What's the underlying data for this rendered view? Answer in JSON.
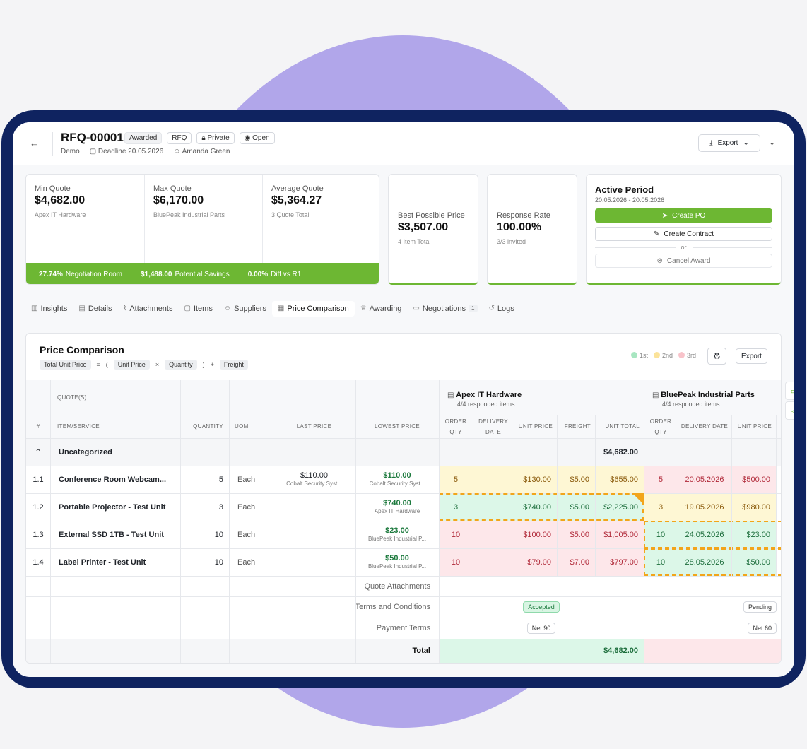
{
  "header": {
    "rfq_id": "RFQ-00001",
    "badges": [
      "Awarded",
      "RFQ",
      "Private",
      "Open"
    ],
    "org": "Demo",
    "deadline": "Deadline 20.05.2026",
    "owner": "Amanda Green",
    "export_label": "Export"
  },
  "quote_stats": {
    "min": {
      "label": "Min Quote",
      "value": "$4,682.00",
      "sub": "Apex IT Hardware"
    },
    "max": {
      "label": "Max Quote",
      "value": "$6,170.00",
      "sub": "BluePeak Industrial Parts"
    },
    "avg": {
      "label": "Average Quote",
      "value": "$5,364.27",
      "sub": "3 Quote Total"
    },
    "bar": {
      "negotiation_value": "27.74%",
      "negotiation_label": "Negotiation Room",
      "savings_value": "$1,488.00",
      "savings_label": "Potential Savings",
      "diff_value": "0.00%",
      "diff_label": "Diff vs R1"
    }
  },
  "best_price": {
    "label": "Best Possible Price",
    "value": "$3,507.00",
    "sub": "4 Item Total"
  },
  "response_rate": {
    "label": "Response Rate",
    "value": "100.00%",
    "sub": "3/3 invited"
  },
  "active_period": {
    "title": "Active Period",
    "dates": "20.05.2026 - 20.05.2026",
    "create_po": "Create PO",
    "create_contract": "Create Contract",
    "or": "or",
    "cancel_award": "Cancel Award"
  },
  "tabs": [
    {
      "label": "Insights",
      "icon": "bar-chart-icon"
    },
    {
      "label": "Details",
      "icon": "document-icon"
    },
    {
      "label": "Attachments",
      "icon": "paperclip-icon"
    },
    {
      "label": "Items",
      "icon": "clipboard-icon"
    },
    {
      "label": "Suppliers",
      "icon": "users-icon"
    },
    {
      "label": "Price Comparison",
      "icon": "table-icon",
      "active": true
    },
    {
      "label": "Awarding",
      "icon": "trophy-icon"
    },
    {
      "label": "Negotiations",
      "icon": "chat-icon",
      "count": "1"
    },
    {
      "label": "Logs",
      "icon": "history-icon"
    }
  ],
  "price_comparison": {
    "title": "Price Comparison",
    "formula": {
      "total": "Total Unit Price",
      "eq": "=",
      "open": "(",
      "unit_price": "Unit Price",
      "times": "×",
      "quantity": "Quantity",
      "close": ")",
      "plus": "+",
      "freight": "Freight"
    },
    "legend": {
      "first": "1st",
      "second": "2nd",
      "third": "3rd",
      "first_color": "#a8e6c1",
      "second_color": "#fbe39a",
      "third_color": "#f8c3ca"
    },
    "export_label": "Export"
  },
  "table": {
    "quotes_header": "QUOTE(S)",
    "columns": {
      "index": "#",
      "item": "ITEM/SERVICE",
      "quantity": "QUANTITY",
      "uom": "UOM",
      "last_price": "LAST PRICE",
      "lowest_price": "LOWEST PRICE"
    },
    "supplier_columns": {
      "order_qty": "ORDER QTY",
      "delivery_date": "DELIVERY DATE",
      "unit_price": "UNIT PRICE",
      "freight": "FREIGHT",
      "unit_total": "UNIT TOTAL"
    },
    "suppliers": [
      {
        "name": "Apex IT Hardware",
        "sub": "4/4 responded items"
      },
      {
        "name": "BluePeak Industrial Parts",
        "sub": "4/4 responded items"
      }
    ],
    "group": {
      "label": "Uncategorized",
      "apex_total": "$4,682.00"
    },
    "rows": [
      {
        "idx": "1.1",
        "item": "Conference Room Webcam...",
        "qty": "5",
        "uom": "Each",
        "last_price": "$110.00",
        "last_supplier": "Cobalt Security Syst...",
        "lowest_price": "$110.00",
        "lowest_supplier": "Cobalt Security Syst...",
        "apex": {
          "order_qty": "5",
          "delivery": "",
          "unit_price": "$130.00",
          "freight": "$5.00",
          "unit_total": "$655.00",
          "rank": "y"
        },
        "blue": {
          "order_qty": "5",
          "delivery": "20.05.2026",
          "unit_price": "$500.00",
          "rank": "r"
        }
      },
      {
        "idx": "1.2",
        "item": "Portable Projector - Test Unit",
        "qty": "3",
        "uom": "Each",
        "last_price": "",
        "last_supplier": "",
        "lowest_price": "$740.00",
        "lowest_supplier": "Apex IT Hardware",
        "apex": {
          "order_qty": "3",
          "delivery": "",
          "unit_price": "$740.00",
          "freight": "$5.00",
          "unit_total": "$2,225.00",
          "rank": "g"
        },
        "blue": {
          "order_qty": "3",
          "delivery": "19.05.2026",
          "unit_price": "$980.00",
          "rank": "y"
        }
      },
      {
        "idx": "1.3",
        "item": "External SSD 1TB - Test Unit",
        "qty": "10",
        "uom": "Each",
        "last_price": "",
        "last_supplier": "",
        "lowest_price": "$23.00",
        "lowest_supplier": "BluePeak Industrial P...",
        "apex": {
          "order_qty": "10",
          "delivery": "",
          "unit_price": "$100.00",
          "freight": "$5.00",
          "unit_total": "$1,005.00",
          "rank": "r"
        },
        "blue": {
          "order_qty": "10",
          "delivery": "24.05.2026",
          "unit_price": "$23.00",
          "rank": "g"
        }
      },
      {
        "idx": "1.4",
        "item": "Label Printer - Test Unit",
        "qty": "10",
        "uom": "Each",
        "last_price": "",
        "last_supplier": "",
        "lowest_price": "$50.00",
        "lowest_supplier": "BluePeak Industrial P...",
        "apex": {
          "order_qty": "10",
          "delivery": "",
          "unit_price": "$79.00",
          "freight": "$7.00",
          "unit_total": "$797.00",
          "rank": "r"
        },
        "blue": {
          "order_qty": "10",
          "delivery": "28.05.2026",
          "unit_price": "$50.00",
          "rank": "g"
        }
      }
    ],
    "footer": {
      "attachments_label": "Quote Attachments",
      "terms_label": "Terms and Conditions",
      "apex_terms": "Accepted",
      "blue_terms": "Pending",
      "payment_label": "Payment Terms",
      "apex_payment": "Net 90",
      "blue_payment": "Net 60",
      "total_label": "Total",
      "apex_total": "$4,682.00"
    }
  }
}
